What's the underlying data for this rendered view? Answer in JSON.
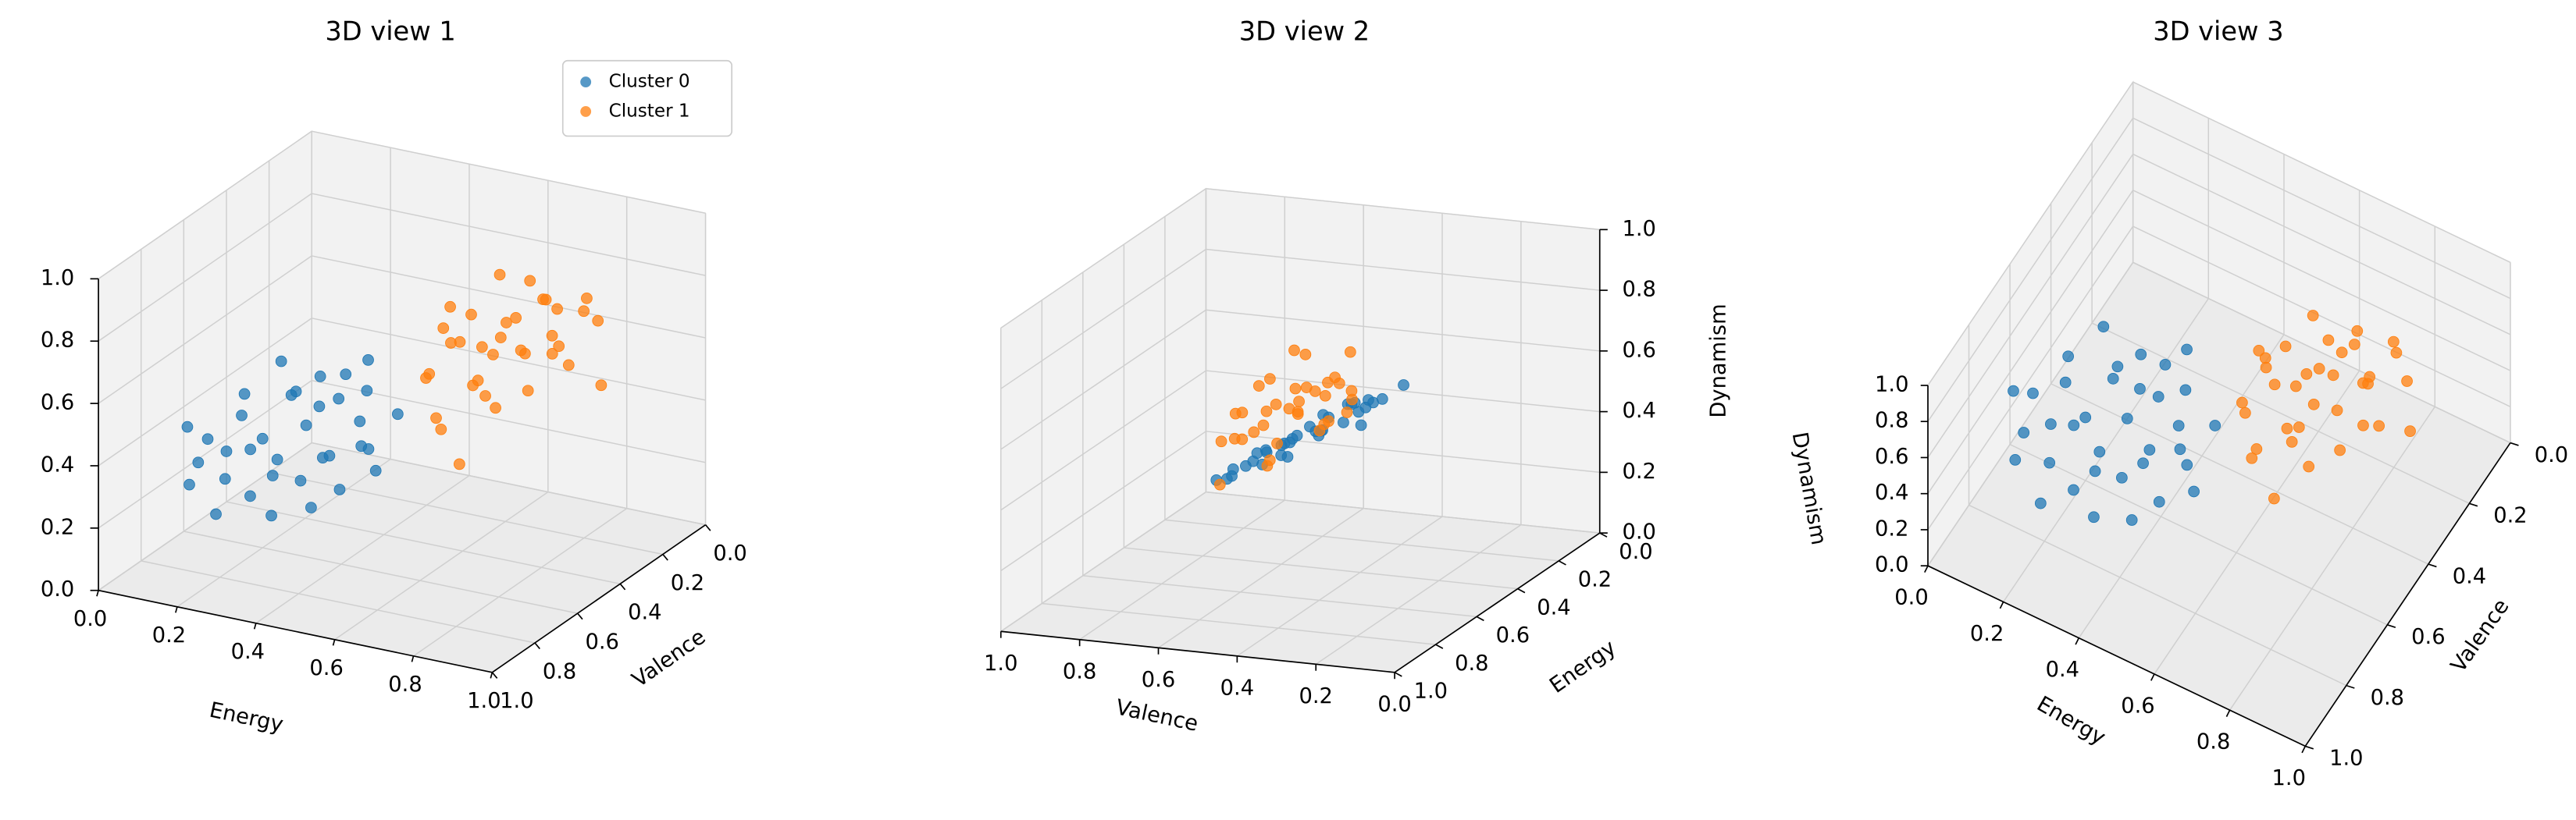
{
  "chart_data": [
    {
      "type": "scatter3d",
      "title": "3D view 1",
      "xlabel": "Energy",
      "ylabel": "Valence",
      "xlim": [
        0,
        1
      ],
      "ylim": [
        0,
        1
      ],
      "zlim": [
        0,
        1
      ],
      "xticks": [
        {
          "value": 0,
          "label": "0.0"
        },
        0.2,
        0.4,
        0.6,
        0.8,
        {
          "value": 1,
          "label": "1.0"
        }
      ],
      "yticks": [
        {
          "value": 0,
          "label": "0.0"
        },
        0.2,
        0.4,
        0.6,
        0.8,
        {
          "value": 1,
          "label": "1.0"
        }
      ],
      "zticks": [
        {
          "value": 0,
          "label": "0.0"
        },
        0.2,
        0.4,
        0.6,
        0.8,
        {
          "value": 1,
          "label": "1.0"
        }
      ],
      "grid": true,
      "legend": "upper right",
      "series": [
        {
          "name": "Cluster 0",
          "color": "#1f77b4",
          "x": [
            0.12,
            0.18,
            0.22,
            0.28,
            0.3,
            0.35,
            0.08,
            0.15,
            0.25,
            0.38,
            0.42,
            0.2,
            0.33,
            0.1,
            0.27,
            0.45,
            0.4,
            0.05,
            0.17,
            0.32,
            0.48,
            0.23,
            0.36,
            0.13,
            0.29,
            0.44,
            0.02,
            0.19,
            0.37,
            0.5,
            0.26,
            0.09,
            0.41,
            0.34,
            0.52
          ],
          "y": [
            0.55,
            0.62,
            0.48,
            0.7,
            0.58,
            0.52,
            0.68,
            0.42,
            0.75,
            0.65,
            0.55,
            0.6,
            0.45,
            0.5,
            0.66,
            0.7,
            0.48,
            0.58,
            0.72,
            0.78,
            0.62,
            0.52,
            0.4,
            0.64,
            0.5,
            0.58,
            0.62,
            0.8,
            0.6,
            0.52,
            0.44,
            0.74,
            0.76,
            0.68,
            0.66
          ],
          "z": [
            0.38,
            0.32,
            0.45,
            0.3,
            0.41,
            0.48,
            0.28,
            0.5,
            0.25,
            0.36,
            0.44,
            0.35,
            0.52,
            0.42,
            0.33,
            0.3,
            0.5,
            0.3,
            0.27,
            0.22,
            0.4,
            0.46,
            0.55,
            0.31,
            0.43,
            0.38,
            0.35,
            0.2,
            0.34,
            0.47,
            0.49,
            0.24,
            0.26,
            0.29,
            0.36
          ]
        },
        {
          "name": "Cluster 1",
          "color": "#ff7f0e",
          "x": [
            0.62,
            0.7,
            0.58,
            0.75,
            0.66,
            0.8,
            0.55,
            0.72,
            0.85,
            0.6,
            0.68,
            0.78,
            0.9,
            0.64,
            0.73,
            0.82,
            0.57,
            0.69,
            0.76,
            0.88,
            0.63,
            0.71,
            0.81,
            0.59,
            0.67,
            0.74,
            0.93,
            0.61,
            0.79,
            0.86,
            0.54,
            0.77,
            0.65,
            0.84,
            0.7
          ],
          "y": [
            0.45,
            0.38,
            0.52,
            0.3,
            0.42,
            0.35,
            0.48,
            0.55,
            0.28,
            0.36,
            0.5,
            0.44,
            0.32,
            0.3,
            0.25,
            0.5,
            0.4,
            0.46,
            0.38,
            0.42,
            0.58,
            0.33,
            0.22,
            0.44,
            0.28,
            0.48,
            0.36,
            0.52,
            0.3,
            0.46,
            0.38,
            0.56,
            0.35,
            0.4,
            0.6
          ],
          "z": [
            0.7,
            0.75,
            0.62,
            0.8,
            0.68,
            0.72,
            0.58,
            0.65,
            0.82,
            0.74,
            0.6,
            0.7,
            0.78,
            0.85,
            0.77,
            0.62,
            0.66,
            0.55,
            0.9,
            0.68,
            0.52,
            0.64,
            0.74,
            0.8,
            0.71,
            0.76,
            0.6,
            0.45,
            0.66,
            0.73,
            0.69,
            0.58,
            0.62,
            0.84,
            0.4
          ]
        }
      ]
    },
    {
      "type": "scatter3d",
      "title": "3D view 2",
      "xlabel": "Energy",
      "ylabel": "Valence",
      "zlabel": "Dynamism",
      "xlim": [
        0,
        1
      ],
      "ylim": [
        0,
        1
      ],
      "zlim": [
        0,
        1
      ],
      "xticks": [
        {
          "value": 0,
          "label": "0.0"
        },
        0.2,
        0.4,
        0.6,
        0.8,
        {
          "value": 1,
          "label": "1.0"
        }
      ],
      "yticks": [
        {
          "value": 0,
          "label": "0.0"
        },
        0.2,
        0.4,
        0.6,
        0.8,
        {
          "value": 1,
          "label": "1.0"
        }
      ],
      "zticks": [
        {
          "value": 0,
          "label": "0.0"
        },
        0.2,
        0.4,
        0.6,
        0.8,
        {
          "value": 1,
          "label": "1.0"
        }
      ],
      "grid": true,
      "series": [
        {
          "color": "#1f77b4",
          "x": [
            0.12,
            0.18,
            0.22,
            0.28,
            0.3,
            0.35,
            0.08,
            0.15,
            0.25,
            0.38,
            0.42,
            0.2,
            0.33,
            0.1,
            0.27,
            0.45,
            0.4,
            0.05,
            0.17,
            0.32,
            0.48,
            0.23,
            0.36,
            0.13,
            0.29,
            0.44,
            0.02,
            0.19,
            0.37,
            0.5,
            0.26,
            0.09,
            0.41,
            0.34,
            0.52
          ],
          "y": [
            0.55,
            0.62,
            0.48,
            0.7,
            0.58,
            0.52,
            0.68,
            0.42,
            0.75,
            0.65,
            0.55,
            0.6,
            0.45,
            0.5,
            0.66,
            0.7,
            0.48,
            0.58,
            0.72,
            0.78,
            0.62,
            0.52,
            0.4,
            0.64,
            0.5,
            0.58,
            0.62,
            0.8,
            0.6,
            0.52,
            0.44,
            0.74,
            0.76,
            0.68,
            0.66
          ],
          "z": [
            0.38,
            0.32,
            0.45,
            0.3,
            0.41,
            0.48,
            0.28,
            0.5,
            0.25,
            0.36,
            0.44,
            0.35,
            0.52,
            0.42,
            0.33,
            0.3,
            0.5,
            0.3,
            0.27,
            0.22,
            0.4,
            0.46,
            0.55,
            0.31,
            0.43,
            0.38,
            0.35,
            0.2,
            0.34,
            0.47,
            0.49,
            0.24,
            0.26,
            0.29,
            0.36
          ]
        },
        {
          "color": "#ff7f0e",
          "x": [
            0.62,
            0.7,
            0.58,
            0.75,
            0.66,
            0.8,
            0.55,
            0.72,
            0.85,
            0.6,
            0.68,
            0.78,
            0.9,
            0.64,
            0.73,
            0.82,
            0.57,
            0.69,
            0.76,
            0.88,
            0.63,
            0.71,
            0.81,
            0.59,
            0.67,
            0.74,
            0.93,
            0.61,
            0.79,
            0.86,
            0.54,
            0.77,
            0.65,
            0.84,
            0.7
          ],
          "y": [
            0.45,
            0.38,
            0.52,
            0.3,
            0.42,
            0.35,
            0.48,
            0.55,
            0.28,
            0.36,
            0.5,
            0.44,
            0.32,
            0.3,
            0.25,
            0.5,
            0.4,
            0.46,
            0.38,
            0.42,
            0.58,
            0.33,
            0.22,
            0.44,
            0.28,
            0.48,
            0.36,
            0.52,
            0.3,
            0.46,
            0.38,
            0.56,
            0.35,
            0.4,
            0.6
          ],
          "z": [
            0.7,
            0.75,
            0.62,
            0.8,
            0.68,
            0.72,
            0.58,
            0.65,
            0.82,
            0.74,
            0.6,
            0.7,
            0.78,
            0.85,
            0.77,
            0.62,
            0.66,
            0.55,
            0.9,
            0.68,
            0.52,
            0.64,
            0.74,
            0.8,
            0.71,
            0.76,
            0.6,
            0.45,
            0.66,
            0.73,
            0.69,
            0.58,
            0.62,
            0.84,
            0.4
          ]
        }
      ]
    },
    {
      "type": "scatter3d",
      "title": "3D view 3",
      "xlabel": "Energy",
      "ylabel": "Valence",
      "zlabel": "Dynamism",
      "xlim": [
        0,
        1
      ],
      "ylim": [
        0,
        1
      ],
      "zlim": [
        0,
        1
      ],
      "xticks": [
        {
          "value": 0,
          "label": "0.0"
        },
        0.2,
        0.4,
        0.6,
        0.8,
        {
          "value": 1,
          "label": "1.0"
        }
      ],
      "yticks": [
        {
          "value": 0,
          "label": "0.0"
        },
        0.2,
        0.4,
        0.6,
        0.8,
        {
          "value": 1,
          "label": "1.0"
        }
      ],
      "zticks": [
        {
          "value": 0,
          "label": "0.0"
        },
        0.2,
        0.4,
        0.6,
        0.8,
        {
          "value": 1,
          "label": "1.0"
        }
      ],
      "grid": true,
      "series": [
        {
          "color": "#1f77b4",
          "x": [
            0.12,
            0.18,
            0.22,
            0.28,
            0.3,
            0.35,
            0.08,
            0.15,
            0.25,
            0.38,
            0.42,
            0.2,
            0.33,
            0.1,
            0.27,
            0.45,
            0.4,
            0.05,
            0.17,
            0.32,
            0.48,
            0.23,
            0.36,
            0.13,
            0.29,
            0.44,
            0.02,
            0.19,
            0.37,
            0.5,
            0.26,
            0.09,
            0.41,
            0.34,
            0.52
          ],
          "y": [
            0.55,
            0.62,
            0.48,
            0.7,
            0.58,
            0.52,
            0.68,
            0.42,
            0.75,
            0.65,
            0.55,
            0.6,
            0.45,
            0.5,
            0.66,
            0.7,
            0.48,
            0.58,
            0.72,
            0.78,
            0.62,
            0.52,
            0.4,
            0.64,
            0.5,
            0.58,
            0.62,
            0.8,
            0.6,
            0.52,
            0.44,
            0.74,
            0.76,
            0.68,
            0.66
          ],
          "z": [
            0.38,
            0.32,
            0.45,
            0.3,
            0.41,
            0.48,
            0.28,
            0.5,
            0.25,
            0.36,
            0.44,
            0.35,
            0.52,
            0.42,
            0.33,
            0.3,
            0.5,
            0.3,
            0.27,
            0.22,
            0.4,
            0.46,
            0.55,
            0.31,
            0.43,
            0.38,
            0.35,
            0.2,
            0.34,
            0.47,
            0.49,
            0.24,
            0.26,
            0.29,
            0.36
          ]
        },
        {
          "color": "#ff7f0e",
          "x": [
            0.62,
            0.7,
            0.58,
            0.75,
            0.66,
            0.8,
            0.55,
            0.72,
            0.85,
            0.6,
            0.68,
            0.78,
            0.9,
            0.64,
            0.73,
            0.82,
            0.57,
            0.69,
            0.76,
            0.88,
            0.63,
            0.71,
            0.81,
            0.59,
            0.67,
            0.74,
            0.93,
            0.61,
            0.79,
            0.86,
            0.54,
            0.77,
            0.65,
            0.84,
            0.7
          ],
          "y": [
            0.45,
            0.38,
            0.52,
            0.3,
            0.42,
            0.35,
            0.48,
            0.55,
            0.28,
            0.36,
            0.5,
            0.44,
            0.32,
            0.3,
            0.25,
            0.5,
            0.4,
            0.46,
            0.38,
            0.42,
            0.58,
            0.33,
            0.22,
            0.44,
            0.28,
            0.48,
            0.36,
            0.52,
            0.3,
            0.46,
            0.38,
            0.56,
            0.35,
            0.4,
            0.6
          ],
          "z": [
            0.7,
            0.75,
            0.62,
            0.8,
            0.68,
            0.72,
            0.58,
            0.65,
            0.82,
            0.74,
            0.6,
            0.7,
            0.78,
            0.85,
            0.77,
            0.62,
            0.66,
            0.55,
            0.9,
            0.68,
            0.52,
            0.64,
            0.74,
            0.8,
            0.71,
            0.76,
            0.6,
            0.45,
            0.66,
            0.73,
            0.69,
            0.58,
            0.62,
            0.84,
            0.4
          ]
        }
      ]
    }
  ]
}
